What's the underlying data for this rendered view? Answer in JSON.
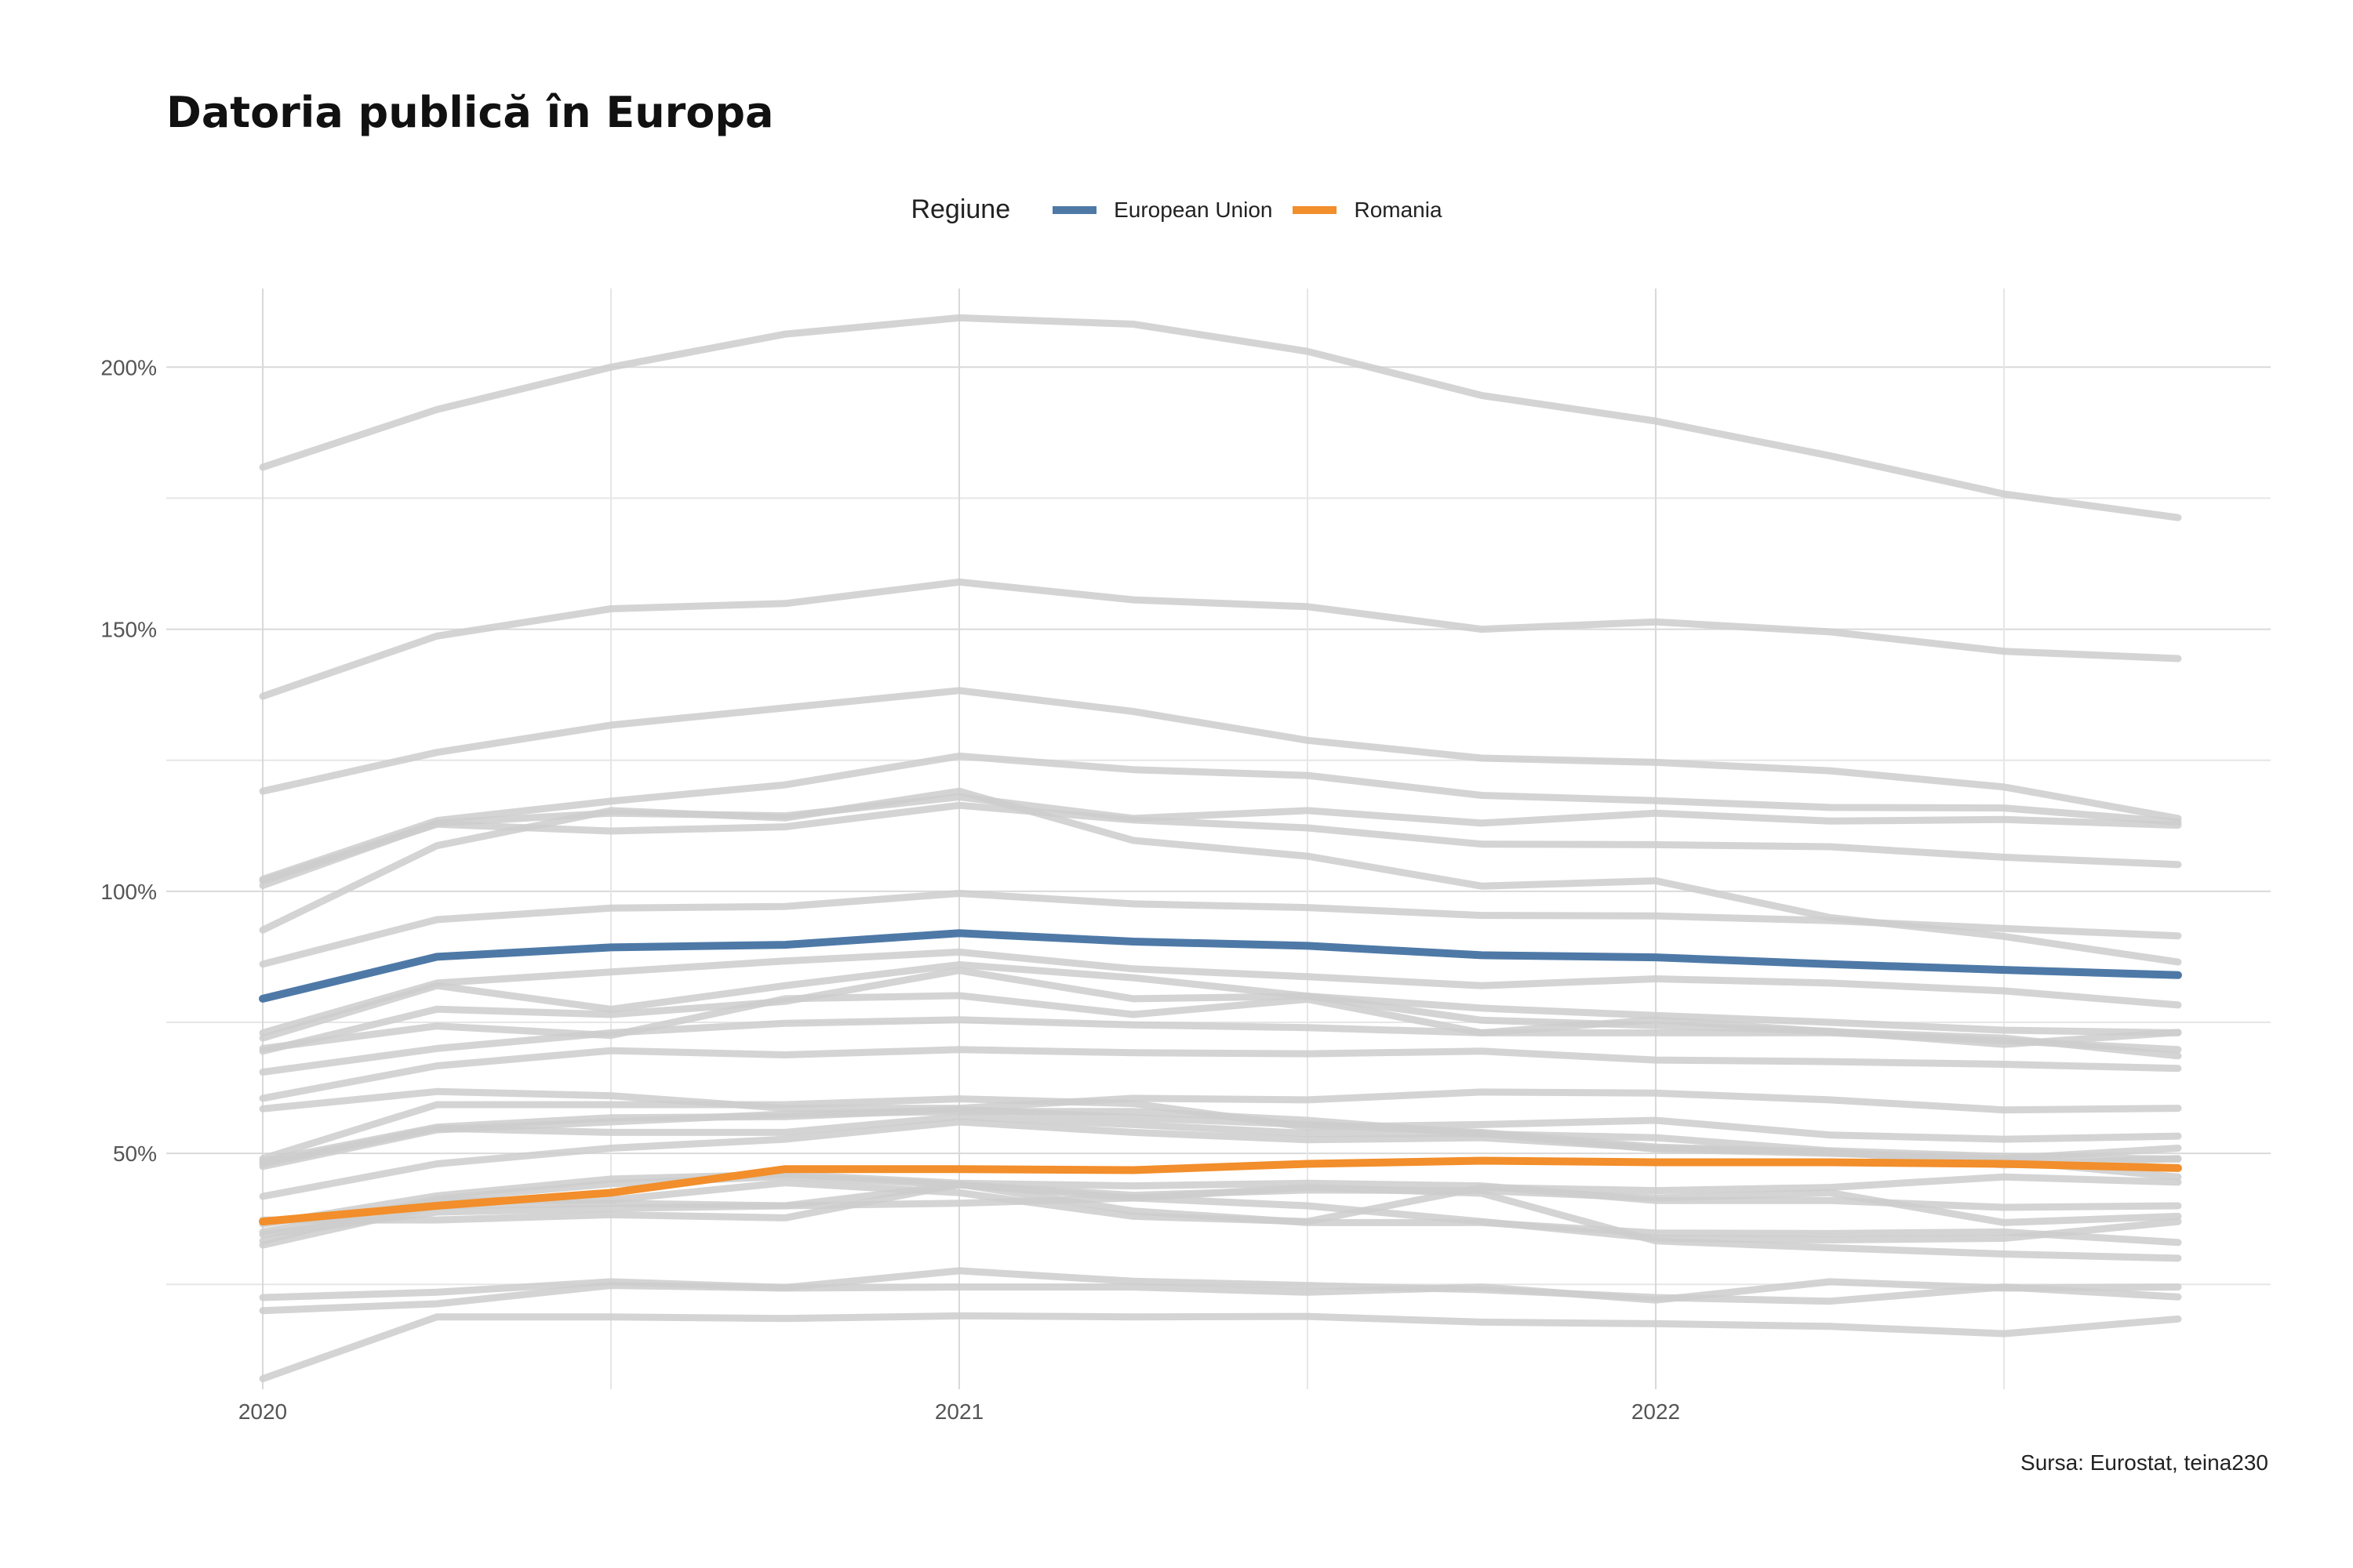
{
  "title": "Datoria publică în Europa",
  "caption": "Sursa: Eurostat, teina230",
  "legend": {
    "title": "Regiune",
    "items": [
      {
        "label": "European Union",
        "color": "#4e79a7"
      },
      {
        "label": "Romania",
        "color": "#f28e2b"
      }
    ]
  },
  "chart_data": {
    "type": "line",
    "title": "Datoria publică în Europa",
    "xlabel": "",
    "ylabel": "",
    "x": [
      "2020-Q1",
      "2020-Q2",
      "2020-Q3",
      "2020-Q4",
      "2021-Q1",
      "2021-Q2",
      "2021-Q3",
      "2021-Q4",
      "2022-Q1",
      "2022-Q2",
      "2022-Q3",
      "2022-Q4"
    ],
    "x_tick_labels": [
      "2020",
      "2021",
      "2022"
    ],
    "y_tick_labels": [
      "50%",
      "100%",
      "150%",
      "200%"
    ],
    "ylim": [
      5,
      215
    ],
    "grid": true,
    "legend_position": "top",
    "background_color": "#cccccc",
    "highlight_series": [
      {
        "name": "European Union",
        "color": "#4e79a7",
        "values": [
          79.5,
          87.5,
          89.3,
          89.8,
          92.0,
          90.4,
          89.6,
          87.8,
          87.4,
          86.1,
          85.0,
          84.0
        ]
      },
      {
        "name": "Romania",
        "color": "#f28e2b",
        "values": [
          37.0,
          40.0,
          42.5,
          47.0,
          47.0,
          46.8,
          48.0,
          48.6,
          48.3,
          48.3,
          48.0,
          47.2
        ]
      }
    ],
    "background_series": [
      {
        "values": [
          180.9,
          191.9,
          200.0,
          206.3,
          209.4,
          208.2,
          203.0,
          194.6,
          189.7,
          183.1,
          175.8,
          171.3
        ]
      },
      {
        "values": [
          137.2,
          148.7,
          153.9,
          154.9,
          159.0,
          155.6,
          154.3,
          150.0,
          151.4,
          149.5,
          145.8,
          144.4
        ]
      },
      {
        "values": [
          119.1,
          126.5,
          131.7,
          135.0,
          138.3,
          134.3,
          128.8,
          125.4,
          124.6,
          123.0,
          119.9,
          113.9
        ]
      },
      {
        "values": [
          102.3,
          113.5,
          117.2,
          120.3,
          125.8,
          123.2,
          122.1,
          118.3,
          117.3,
          116.0,
          115.9,
          113.2
        ]
      },
      {
        "values": [
          101.1,
          113.0,
          114.9,
          114.4,
          118.0,
          113.9,
          115.4,
          113.0,
          114.9,
          113.4,
          113.7,
          112.6
        ]
      },
      {
        "values": [
          102.0,
          112.8,
          111.5,
          112.3,
          116.4,
          113.6,
          112.1,
          109.0,
          108.9,
          108.5,
          106.5,
          105.1
        ]
      },
      {
        "values": [
          92.6,
          108.7,
          115.4,
          114.0,
          119.1,
          109.7,
          106.7,
          101.0,
          102.0,
          95.0,
          91.4,
          86.5
        ]
      },
      {
        "values": [
          86.1,
          94.6,
          96.8,
          97.1,
          99.6,
          97.6,
          96.9,
          95.4,
          95.3,
          94.4,
          92.9,
          91.5
        ]
      },
      {
        "values": [
          73.0,
          82.5,
          84.6,
          86.7,
          88.4,
          85.2,
          83.7,
          82.0,
          83.3,
          82.5,
          81.0,
          78.3
        ]
      },
      {
        "values": [
          72.0,
          82.0,
          77.5,
          82.0,
          86.0,
          83.5,
          80.0,
          77.7,
          76.3,
          75.0,
          73.5,
          73.0
        ]
      },
      {
        "values": [
          69.5,
          77.5,
          76.5,
          79.0,
          84.9,
          79.5,
          80.0,
          75.4,
          74.4,
          73.3,
          70.8,
          73.1
        ]
      },
      {
        "values": [
          70.0,
          74.3,
          72.5,
          79.5,
          80.1,
          76.5,
          79.4,
          73.0,
          73.0,
          73.0,
          71.5,
          69.8
        ]
      },
      {
        "values": [
          65.5,
          70.0,
          73.0,
          74.8,
          75.5,
          74.5,
          74.0,
          73.0,
          75.5,
          73.2,
          72.0,
          68.6
        ]
      },
      {
        "values": [
          60.5,
          66.7,
          69.6,
          68.8,
          69.8,
          69.2,
          69.0,
          69.5,
          67.8,
          67.5,
          67.0,
          66.2
        ]
      },
      {
        "values": [
          58.5,
          61.8,
          61.0,
          58.6,
          58.6,
          60.5,
          60.2,
          61.7,
          61.5,
          60.2,
          58.3,
          58.6
        ]
      },
      {
        "values": [
          49.0,
          59.3,
          59.3,
          59.3,
          60.4,
          59.5,
          55.0,
          55.5,
          56.3,
          53.5,
          52.7,
          53.3
        ]
      },
      {
        "values": [
          47.5,
          54.5,
          56.0,
          57.5,
          58.0,
          58.0,
          56.3,
          53.7,
          53.0,
          50.5,
          49.4,
          48.9
        ]
      },
      {
        "values": [
          48.5,
          55.0,
          56.8,
          57.0,
          58.4,
          56.8,
          55.5,
          54.0,
          51.2,
          50.2,
          48.6,
          45.5
        ]
      },
      {
        "values": [
          48.0,
          54.8,
          54.0,
          54.0,
          57.0,
          55.5,
          53.8,
          53.8,
          50.8,
          50.0,
          49.0,
          51.0
        ]
      },
      {
        "values": [
          41.8,
          48.0,
          51.0,
          52.7,
          56.0,
          54.0,
          52.6,
          53.0,
          51.0,
          50.3,
          47.8,
          49.0
        ]
      },
      {
        "values": [
          36.5,
          41.9,
          45.1,
          46.0,
          44.3,
          43.8,
          44.3,
          43.8,
          41.0,
          41.0,
          39.7,
          40.0
        ]
      },
      {
        "values": [
          35.0,
          41.0,
          41.1,
          44.4,
          42.5,
          38.0,
          37.0,
          43.5,
          42.9,
          43.5,
          45.5,
          44.5
        ]
      },
      {
        "values": [
          33.3,
          41.3,
          44.2,
          45.6,
          44.0,
          41.5,
          40.0,
          37.0,
          33.8,
          33.5,
          33.8,
          37.0
        ]
      },
      {
        "values": [
          32.5,
          40.0,
          40.5,
          40.0,
          40.5,
          41.5,
          43.5,
          42.4,
          33.3,
          32.0,
          30.8,
          30.0
        ]
      },
      {
        "values": [
          37.3,
          37.3,
          38.3,
          37.7,
          44.1,
          39.0,
          36.8,
          36.8,
          34.8,
          34.7,
          35.0,
          33.0
        ]
      },
      {
        "values": [
          34.5,
          38.8,
          39.5,
          40.0,
          44.0,
          42.0,
          43.0,
          42.9,
          41.5,
          42.5,
          36.8,
          38.0
        ]
      },
      {
        "values": [
          22.5,
          23.5,
          25.5,
          24.4,
          27.6,
          25.6,
          24.8,
          24.0,
          22.5,
          21.8,
          24.5,
          22.6
        ]
      },
      {
        "values": [
          20.0,
          21.3,
          24.8,
          24.3,
          24.5,
          24.5,
          23.5,
          24.5,
          22.0,
          25.5,
          24.3,
          24.5
        ]
      },
      {
        "values": [
          7.0,
          18.8,
          18.8,
          18.5,
          19.0,
          18.8,
          18.9,
          17.8,
          17.5,
          17.0,
          15.6,
          18.4
        ]
      }
    ]
  }
}
